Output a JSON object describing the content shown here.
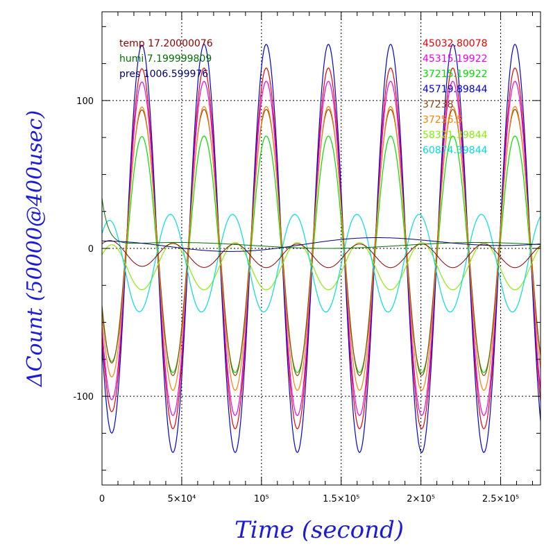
{
  "chart_data": {
    "type": "line",
    "xlabel": "Time (second)",
    "ylabel": "ΔCount (50000@400usec)",
    "xlim": [
      0,
      275000
    ],
    "ylim": [
      -160,
      160
    ],
    "grid": true,
    "x_ticks": [
      {
        "value": 0,
        "label": "0"
      },
      {
        "value": 50000,
        "label": "5×10⁴"
      },
      {
        "value": 100000,
        "label": "10⁵"
      },
      {
        "value": 150000,
        "label": "1.5×10⁵"
      },
      {
        "value": 200000,
        "label": "2×10⁵"
      },
      {
        "value": 250000,
        "label": "2.5×10⁵"
      }
    ],
    "y_ticks": [
      {
        "value": -100,
        "label": "-100"
      },
      {
        "value": 0,
        "label": "0"
      },
      {
        "value": 100,
        "label": "100"
      }
    ],
    "env_labels": [
      {
        "text": "temp 17.20000076",
        "color": "#8b0000"
      },
      {
        "text": "humi 7.199999809",
        "color": "#007000"
      },
      {
        "text": "pres 1006.599976",
        "color": "#000070"
      }
    ],
    "series": [
      {
        "name": "45032.80078",
        "color": "#ee0000",
        "amp": 122,
        "phase": 0.0,
        "offset": 0
      },
      {
        "name": "45315.19922",
        "color": "#ee00ee",
        "amp": 113,
        "phase": 0.0,
        "offset": 0
      },
      {
        "name": "37215.19922",
        "color": "#00dd00",
        "amp": 80,
        "phase": 0.0,
        "offset": -4
      },
      {
        "name": "45719.89844",
        "color": "#0000dd",
        "amp": 138,
        "phase": 0.0,
        "offset": 0
      },
      {
        "name": "37238",
        "color": "#8b4513",
        "amp": 90,
        "phase": 0.0,
        "offset": 4
      },
      {
        "name": "37256.5",
        "color": "#ff8000",
        "amp": 96,
        "phase": 0.0,
        "offset": 0
      },
      {
        "name": "58321.39844",
        "color": "#88ee00",
        "amp": 16,
        "phase": 3.14159,
        "offset": -12
      },
      {
        "name": "60874.39844",
        "color": "#00dddd",
        "amp": 33,
        "phase": 3.4,
        "offset": -10
      }
    ],
    "env_series": [
      {
        "name": "temp",
        "color": "#8b0000",
        "kind": "temp"
      },
      {
        "name": "humi",
        "color": "#007000",
        "kind": "humi"
      },
      {
        "name": "pres",
        "color": "#000070",
        "kind": "pres"
      }
    ],
    "period": 39000,
    "x_first_peak": 25000
  }
}
